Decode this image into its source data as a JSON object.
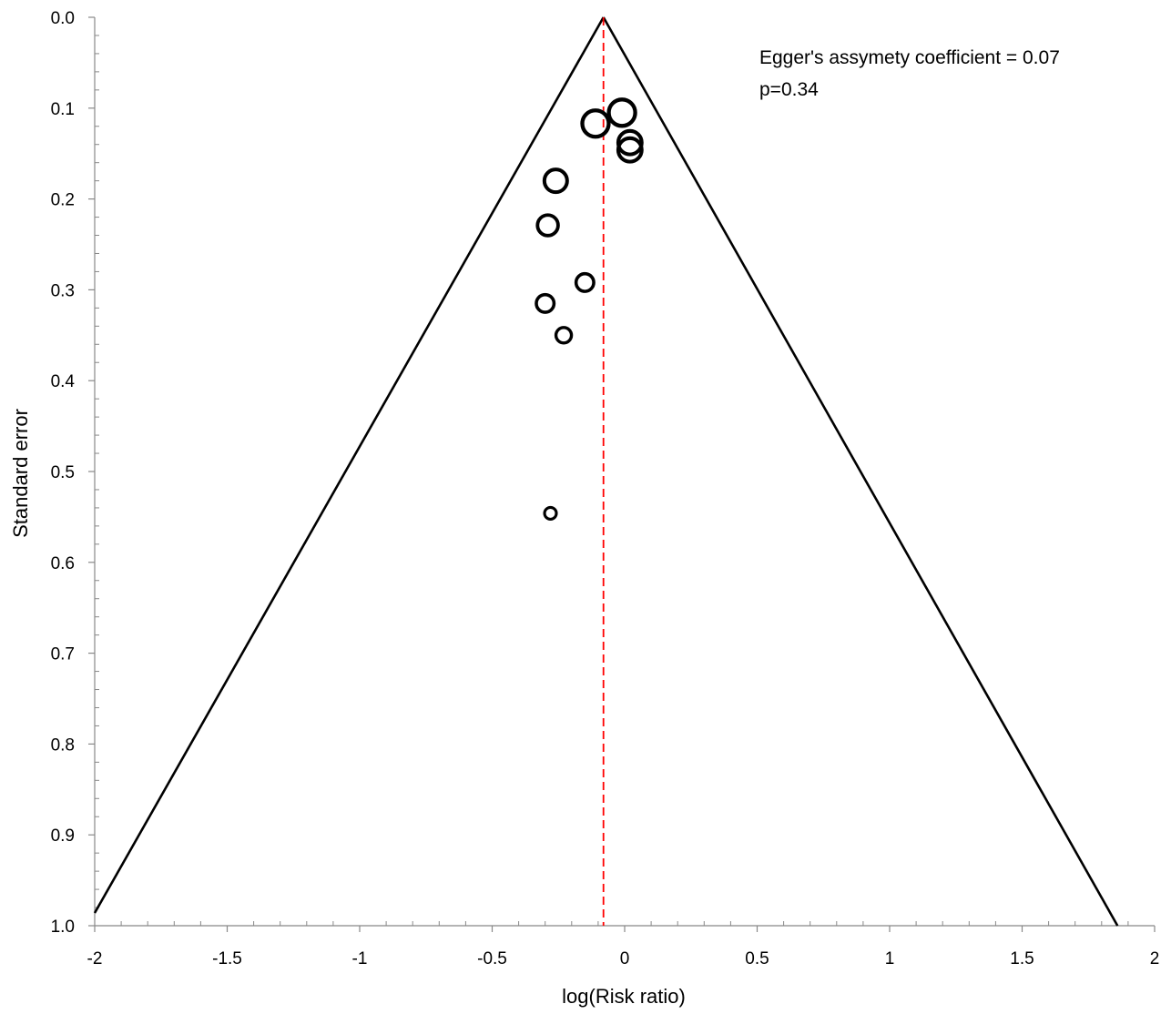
{
  "chart_data": {
    "type": "scatter",
    "title": "",
    "xlabel": "log(Risk ratio)",
    "ylabel": "Standard error",
    "xlim": [
      -2,
      2
    ],
    "ylim": [
      0,
      1
    ],
    "y_inverted": true,
    "x_ticks": [
      "-2",
      "-1.5",
      "-1",
      "-0.5",
      "0",
      "0.5",
      "1",
      "1.5",
      "2"
    ],
    "y_ticks": [
      "0.0",
      "0.1",
      "0.2",
      "0.3",
      "0.4",
      "0.5",
      "0.6",
      "0.7",
      "0.8",
      "0.9",
      "1.0"
    ],
    "pooled_estimate": -0.08,
    "funnel": {
      "apex": [
        -0.08,
        0.0
      ],
      "left_at_bottom": [
        -2.0,
        0.986
      ],
      "right_at_bottom": [
        1.86,
        1.0
      ]
    },
    "points": [
      {
        "x": -0.01,
        "y": 0.105,
        "size": 3
      },
      {
        "x": -0.11,
        "y": 0.117,
        "size": 3
      },
      {
        "x": 0.02,
        "y": 0.138,
        "size": 2.6
      },
      {
        "x": 0.02,
        "y": 0.146,
        "size": 2.6
      },
      {
        "x": -0.26,
        "y": 0.18,
        "size": 2.5
      },
      {
        "x": -0.29,
        "y": 0.229,
        "size": 2.2
      },
      {
        "x": -0.15,
        "y": 0.292,
        "size": 1.8
      },
      {
        "x": -0.3,
        "y": 0.315,
        "size": 1.8
      },
      {
        "x": -0.23,
        "y": 0.35,
        "size": 1.5
      },
      {
        "x": -0.28,
        "y": 0.546,
        "size": 1
      }
    ],
    "annotations": [
      "Egger's assymety coefficient = 0.07",
      "p=0.34"
    ],
    "grid": false,
    "legend": "none"
  },
  "colors": {
    "points": "#000000",
    "funnel": "#000000",
    "pooled_line": "#ff0000"
  }
}
